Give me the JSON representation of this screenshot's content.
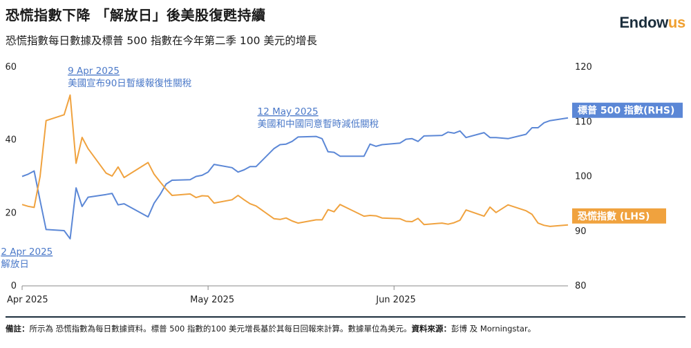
{
  "header": {
    "title": "恐慌指數下降 「解放日」後美股復甦持續",
    "subtitle": "恐慌指數每日數據及標普 500 指數在今年第二季 100 美元的增長",
    "brand_main": "Endow",
    "brand_accent": "us"
  },
  "footnote": {
    "note_label": "備註：",
    "note_text": "所示為 恐慌指數為每日數據資料。標普 500 指數的100 美元增長基於其每日回報來計算。數據單位為美元。",
    "source_label": "資料來源：",
    "source_text": "彭博 及 Morningstar。"
  },
  "colors": {
    "spx": "#5b87d6",
    "vix": "#f0a23e",
    "annotation": "#4a78c8",
    "axis": "#888888"
  },
  "chart_data": {
    "type": "line",
    "x_ticks": [
      "Apr 2025",
      "May 2025",
      "Jun 2025"
    ],
    "y_left": {
      "ticks": [
        "0",
        "20",
        "40",
        "60"
      ],
      "range": [
        0,
        60
      ]
    },
    "y_right": {
      "ticks": [
        "80",
        "90",
        "100",
        "110",
        "120"
      ],
      "range": [
        80,
        120
      ]
    },
    "grid": false,
    "series": [
      {
        "name": "標普 500 指數(RHS)",
        "axis": "right",
        "color": "#5b87d6",
        "points": [
          [
            "2025-03-31",
            100.0
          ],
          [
            "2025-04-01",
            100.4
          ],
          [
            "2025-04-02",
            101.0
          ],
          [
            "2025-04-03",
            95.6
          ],
          [
            "2025-04-04",
            90.3
          ],
          [
            "2025-04-07",
            90.1
          ],
          [
            "2025-04-08",
            88.6
          ],
          [
            "2025-04-09",
            97.9
          ],
          [
            "2025-04-10",
            94.5
          ],
          [
            "2025-04-11",
            96.2
          ],
          [
            "2025-04-14",
            96.7
          ],
          [
            "2025-04-15",
            96.9
          ],
          [
            "2025-04-16",
            94.8
          ],
          [
            "2025-04-17",
            95.0
          ],
          [
            "2025-04-21",
            92.6
          ],
          [
            "2025-04-22",
            95.1
          ],
          [
            "2025-04-23",
            96.7
          ],
          [
            "2025-04-24",
            98.6
          ],
          [
            "2025-04-25",
            99.3
          ],
          [
            "2025-04-28",
            99.4
          ],
          [
            "2025-04-29",
            100.0
          ],
          [
            "2025-04-30",
            100.2
          ],
          [
            "2025-05-01",
            100.8
          ],
          [
            "2025-05-02",
            102.2
          ],
          [
            "2025-05-05",
            101.6
          ],
          [
            "2025-05-06",
            100.8
          ],
          [
            "2025-05-07",
            101.2
          ],
          [
            "2025-05-08",
            101.8
          ],
          [
            "2025-05-09",
            101.8
          ],
          [
            "2025-05-12",
            105.1
          ],
          [
            "2025-05-13",
            105.8
          ],
          [
            "2025-05-14",
            105.9
          ],
          [
            "2025-05-15",
            106.4
          ],
          [
            "2025-05-16",
            107.2
          ],
          [
            "2025-05-19",
            107.3
          ],
          [
            "2025-05-20",
            106.9
          ],
          [
            "2025-05-21",
            104.5
          ],
          [
            "2025-05-22",
            104.4
          ],
          [
            "2025-05-23",
            103.7
          ],
          [
            "2025-05-27",
            103.7
          ],
          [
            "2025-05-28",
            105.9
          ],
          [
            "2025-05-29",
            105.5
          ],
          [
            "2025-05-30",
            105.8
          ],
          [
            "2025-06-02",
            106.1
          ],
          [
            "2025-06-03",
            106.8
          ],
          [
            "2025-06-04",
            106.9
          ],
          [
            "2025-06-05",
            106.4
          ],
          [
            "2025-06-06",
            107.4
          ],
          [
            "2025-06-09",
            107.5
          ],
          [
            "2025-06-10",
            108.1
          ],
          [
            "2025-06-11",
            107.9
          ],
          [
            "2025-06-12",
            108.3
          ],
          [
            "2025-06-13",
            107.1
          ],
          [
            "2025-06-16",
            108.0
          ],
          [
            "2025-06-17",
            107.1
          ],
          [
            "2025-06-18",
            107.1
          ],
          [
            "2025-06-20",
            106.9
          ],
          [
            "2025-06-23",
            107.7
          ],
          [
            "2025-06-24",
            108.9
          ],
          [
            "2025-06-25",
            108.9
          ],
          [
            "2025-06-26",
            109.8
          ],
          [
            "2025-06-27",
            110.2
          ],
          [
            "2025-06-30",
            110.7
          ]
        ]
      },
      {
        "name": "恐慌指數 (LHS)",
        "axis": "left",
        "color": "#f0a23e",
        "points": [
          [
            "2025-03-31",
            22.3
          ],
          [
            "2025-04-01",
            21.8
          ],
          [
            "2025-04-02",
            21.5
          ],
          [
            "2025-04-03",
            30.0
          ],
          [
            "2025-04-04",
            45.3
          ],
          [
            "2025-04-07",
            46.9
          ],
          [
            "2025-04-08",
            52.3
          ],
          [
            "2025-04-09",
            33.6
          ],
          [
            "2025-04-10",
            40.7
          ],
          [
            "2025-04-11",
            37.6
          ],
          [
            "2025-04-14",
            30.9
          ],
          [
            "2025-04-15",
            30.1
          ],
          [
            "2025-04-16",
            32.6
          ],
          [
            "2025-04-17",
            29.7
          ],
          [
            "2025-04-21",
            33.8
          ],
          [
            "2025-04-22",
            30.6
          ],
          [
            "2025-04-23",
            28.5
          ],
          [
            "2025-04-24",
            26.5
          ],
          [
            "2025-04-25",
            24.8
          ],
          [
            "2025-04-28",
            25.2
          ],
          [
            "2025-04-29",
            24.2
          ],
          [
            "2025-04-30",
            24.7
          ],
          [
            "2025-05-01",
            24.6
          ],
          [
            "2025-05-02",
            22.7
          ],
          [
            "2025-05-05",
            23.6
          ],
          [
            "2025-05-06",
            24.8
          ],
          [
            "2025-05-07",
            23.6
          ],
          [
            "2025-05-08",
            22.5
          ],
          [
            "2025-05-09",
            21.9
          ],
          [
            "2025-05-12",
            18.4
          ],
          [
            "2025-05-13",
            18.2
          ],
          [
            "2025-05-14",
            18.6
          ],
          [
            "2025-05-15",
            17.8
          ],
          [
            "2025-05-16",
            17.2
          ],
          [
            "2025-05-19",
            18.1
          ],
          [
            "2025-05-20",
            18.1
          ],
          [
            "2025-05-21",
            20.9
          ],
          [
            "2025-05-22",
            20.3
          ],
          [
            "2025-05-23",
            22.3
          ],
          [
            "2025-05-27",
            19.1
          ],
          [
            "2025-05-28",
            19.3
          ],
          [
            "2025-05-29",
            19.2
          ],
          [
            "2025-05-30",
            18.6
          ],
          [
            "2025-06-02",
            18.4
          ],
          [
            "2025-06-03",
            17.7
          ],
          [
            "2025-06-04",
            17.6
          ],
          [
            "2025-06-05",
            18.5
          ],
          [
            "2025-06-06",
            16.8
          ],
          [
            "2025-06-09",
            17.2
          ],
          [
            "2025-06-10",
            16.9
          ],
          [
            "2025-06-11",
            17.3
          ],
          [
            "2025-06-12",
            18.0
          ],
          [
            "2025-06-13",
            20.8
          ],
          [
            "2025-06-16",
            19.1
          ],
          [
            "2025-06-17",
            21.6
          ],
          [
            "2025-06-18",
            20.1
          ],
          [
            "2025-06-20",
            22.2
          ],
          [
            "2025-06-23",
            20.6
          ],
          [
            "2025-06-24",
            19.6
          ],
          [
            "2025-06-25",
            17.2
          ],
          [
            "2025-06-26",
            16.6
          ],
          [
            "2025-06-27",
            16.3
          ],
          [
            "2025-06-30",
            16.7
          ]
        ]
      }
    ],
    "annotations": [
      {
        "date": "2025-04-09",
        "label": "9 Apr 2025",
        "text": "美國宣布90日暫緩報復性關稅"
      },
      {
        "date": "2025-05-12",
        "label": "12 May 2025",
        "text": "美國和中國同意暫時減低關稅"
      },
      {
        "date": "2025-04-02",
        "label": "2 Apr 2025",
        "text": "解放日"
      }
    ]
  }
}
